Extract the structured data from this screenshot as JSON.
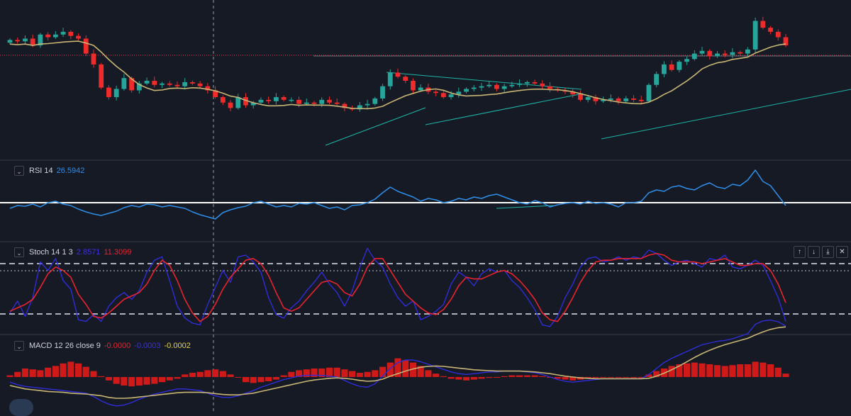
{
  "colors": {
    "background": "#161a25",
    "separator": "#363a45",
    "up_candle": "#26a69a",
    "down_candle": "#ef2b2b",
    "ma_line": "#c8b575",
    "price_line": "#f23645",
    "trendline": "#1fb5a6",
    "rsi_line": "#2e8ee8",
    "stoch_k": "#2f2cd8",
    "stoch_d": "#e8232e",
    "macd_line": "#2f2cd8",
    "signal_line": "#c8b575",
    "histogram": "#d01a1a"
  },
  "rsi": {
    "label": "RSI 14",
    "value": "26.5942",
    "value_color": "#2e8ee8"
  },
  "stoch": {
    "label": "Stoch 14 1 3",
    "k_value": "2.8571",
    "d_value": "11.3099",
    "k_color": "#3b30e0",
    "d_color": "#e8232e"
  },
  "macd": {
    "label": "MACD 12 26 close 9",
    "hist_value": "-0.0000",
    "macd_value": "-0.0003",
    "signal_value": "-0.0002",
    "hist_color": "#e8232e",
    "macd_color": "#3b30e0",
    "signal_color": "#e8d24a"
  },
  "controls": {
    "up": "↑",
    "down": "↓",
    "collapse": "⤓",
    "close": "✕",
    "chevron": "⌄"
  },
  "chart_data": [
    {
      "type": "candlestick",
      "name": "",
      "closes": [
        0.8,
        0.79,
        0.81,
        0.76,
        0.84,
        0.82,
        0.84,
        0.86,
        0.83,
        0.81,
        0.7,
        0.62,
        0.45,
        0.38,
        0.44,
        0.52,
        0.43,
        0.48,
        0.5,
        0.47,
        0.48,
        0.47,
        0.46,
        0.49,
        0.48,
        0.46,
        0.43,
        0.38,
        0.34,
        0.3,
        0.38,
        0.32,
        0.34,
        0.36,
        0.35,
        0.38,
        0.36,
        0.36,
        0.33,
        0.34,
        0.33,
        0.36,
        0.34,
        0.33,
        0.3,
        0.29,
        0.32,
        0.33,
        0.37,
        0.46,
        0.56,
        0.53,
        0.5,
        0.43,
        0.45,
        0.42,
        0.41,
        0.38,
        0.4,
        0.42,
        0.44,
        0.45,
        0.46,
        0.47,
        0.44,
        0.46,
        0.47,
        0.48,
        0.49,
        0.48,
        0.46,
        0.44,
        0.43,
        0.42,
        0.4,
        0.36,
        0.38,
        0.35,
        0.36,
        0.37,
        0.35,
        0.37,
        0.36,
        0.35,
        0.47,
        0.55,
        0.62,
        0.58,
        0.64,
        0.66,
        0.7,
        0.72,
        0.68,
        0.7,
        0.69,
        0.71,
        0.7,
        0.73,
        0.94,
        0.89,
        0.86,
        0.82,
        0.76
      ]
    },
    {
      "type": "line",
      "name": "",
      "indicator": "RSI 14",
      "last_value": 26.5942,
      "levels": [
        50
      ],
      "values": [
        0.42,
        0.46,
        0.45,
        0.48,
        0.44,
        0.5,
        0.52,
        0.48,
        0.46,
        0.41,
        0.37,
        0.34,
        0.32,
        0.35,
        0.38,
        0.43,
        0.46,
        0.44,
        0.48,
        0.47,
        0.44,
        0.46,
        0.44,
        0.42,
        0.37,
        0.33,
        0.3,
        0.27,
        0.36,
        0.4,
        0.43,
        0.45,
        0.5,
        0.52,
        0.48,
        0.44,
        0.46,
        0.44,
        0.49,
        0.48,
        0.5,
        0.46,
        0.42,
        0.44,
        0.4,
        0.46,
        0.47,
        0.5,
        0.55,
        0.64,
        0.72,
        0.66,
        0.62,
        0.58,
        0.52,
        0.56,
        0.54,
        0.5,
        0.52,
        0.56,
        0.54,
        0.58,
        0.56,
        0.6,
        0.62,
        0.58,
        0.54,
        0.5,
        0.48,
        0.53,
        0.5,
        0.44,
        0.47,
        0.49,
        0.5,
        0.48,
        0.52,
        0.49,
        0.5,
        0.48,
        0.44,
        0.5,
        0.5,
        0.52,
        0.64,
        0.68,
        0.66,
        0.72,
        0.74,
        0.7,
        0.68,
        0.74,
        0.78,
        0.72,
        0.7,
        0.76,
        0.74,
        0.82,
        0.96,
        0.8,
        0.74,
        0.6,
        0.46
      ]
    },
    {
      "type": "line",
      "name": "",
      "indicator": "Stoch 14 1 3",
      "k_last": 2.8571,
      "d_last": 11.3099,
      "levels": [
        80,
        20
      ],
      "k": [
        0.22,
        0.36,
        0.18,
        0.4,
        0.82,
        0.72,
        0.86,
        0.6,
        0.5,
        0.14,
        0.12,
        0.2,
        0.12,
        0.3,
        0.4,
        0.46,
        0.38,
        0.48,
        0.7,
        0.84,
        0.88,
        0.6,
        0.3,
        0.16,
        0.1,
        0.08,
        0.32,
        0.52,
        0.72,
        0.58,
        0.88,
        0.9,
        0.82,
        0.7,
        0.4,
        0.2,
        0.16,
        0.28,
        0.36,
        0.48,
        0.58,
        0.7,
        0.56,
        0.46,
        0.3,
        0.48,
        0.76,
        0.98,
        0.84,
        0.76,
        0.56,
        0.4,
        0.3,
        0.36,
        0.14,
        0.18,
        0.24,
        0.32,
        0.56,
        0.7,
        0.64,
        0.54,
        0.68,
        0.74,
        0.7,
        0.72,
        0.6,
        0.52,
        0.4,
        0.26,
        0.08,
        0.06,
        0.18,
        0.4,
        0.56,
        0.76,
        0.86,
        0.88,
        0.82,
        0.84,
        0.88,
        0.84,
        0.88,
        0.86,
        0.96,
        0.92,
        0.84,
        0.78,
        0.82,
        0.84,
        0.8,
        0.76,
        0.86,
        0.84,
        0.9,
        0.76,
        0.74,
        0.78,
        0.84,
        0.78,
        0.6,
        0.4,
        0.12
      ],
      "d": [
        0.24,
        0.28,
        0.32,
        0.38,
        0.52,
        0.68,
        0.76,
        0.72,
        0.64,
        0.44,
        0.32,
        0.18,
        0.16,
        0.22,
        0.3,
        0.38,
        0.42,
        0.46,
        0.56,
        0.72,
        0.84,
        0.78,
        0.6,
        0.38,
        0.22,
        0.12,
        0.18,
        0.32,
        0.5,
        0.64,
        0.74,
        0.84,
        0.86,
        0.8,
        0.66,
        0.46,
        0.28,
        0.24,
        0.28,
        0.38,
        0.48,
        0.58,
        0.6,
        0.56,
        0.46,
        0.42,
        0.56,
        0.76,
        0.86,
        0.86,
        0.72,
        0.58,
        0.44,
        0.36,
        0.28,
        0.22,
        0.2,
        0.26,
        0.38,
        0.54,
        0.64,
        0.62,
        0.62,
        0.66,
        0.7,
        0.72,
        0.68,
        0.6,
        0.5,
        0.38,
        0.22,
        0.14,
        0.12,
        0.24,
        0.4,
        0.58,
        0.72,
        0.82,
        0.84,
        0.84,
        0.86,
        0.86,
        0.86,
        0.86,
        0.9,
        0.92,
        0.9,
        0.84,
        0.82,
        0.82,
        0.82,
        0.8,
        0.82,
        0.84,
        0.86,
        0.82,
        0.78,
        0.78,
        0.8,
        0.8,
        0.72,
        0.56,
        0.34
      ]
    },
    {
      "type": "bar",
      "name": "",
      "indicator": "MACD 12 26 close 9",
      "hist_last": -0.0,
      "macd_last": -0.0003,
      "signal_last": -0.0002,
      "histogram": [
        0.4,
        1.2,
        2.0,
        1.8,
        1.6,
        2.2,
        2.6,
        3.2,
        3.6,
        3.2,
        2.4,
        1.4,
        0.2,
        -0.8,
        -1.6,
        -2.0,
        -2.2,
        -2.0,
        -1.8,
        -1.6,
        -1.2,
        -0.8,
        -0.4,
        0.6,
        1.0,
        1.2,
        1.6,
        1.8,
        1.4,
        0.6,
        0.0,
        -1.2,
        -1.4,
        -1.2,
        -1.0,
        -0.6,
        0.4,
        1.2,
        1.6,
        1.8,
        2.0,
        2.0,
        2.2,
        2.2,
        1.8,
        1.4,
        1.0,
        1.2,
        1.6,
        2.4,
        3.4,
        4.4,
        4.0,
        3.4,
        2.6,
        1.6,
        0.8,
        0.2,
        -0.4,
        -0.6,
        -0.8,
        -0.6,
        -0.4,
        -0.2,
        0.0,
        0.2,
        0.4,
        0.4,
        0.4,
        0.4,
        0.2,
        0.0,
        -0.4,
        -0.6,
        -0.8,
        -0.6,
        -0.4,
        -0.2,
        -0.1,
        -0.1,
        -0.1,
        -0.1,
        -0.2,
        -0.2,
        0.6,
        1.4,
        2.0,
        2.6,
        3.0,
        3.2,
        3.4,
        3.2,
        3.0,
        2.8,
        2.6,
        2.8,
        3.0,
        3.0,
        3.6,
        3.4,
        3.0,
        2.2,
        0.8
      ],
      "macd": [
        -1.2,
        -1.8,
        -2.2,
        -2.4,
        -2.6,
        -2.8,
        -3.0,
        -3.2,
        -3.4,
        -3.6,
        -3.8,
        -4.6,
        -5.6,
        -6.4,
        -6.8,
        -6.6,
        -6.0,
        -5.2,
        -4.6,
        -4.0,
        -3.6,
        -3.2,
        -2.8,
        -2.8,
        -3.0,
        -3.2,
        -3.8,
        -4.4,
        -4.8,
        -4.8,
        -4.4,
        -3.8,
        -3.2,
        -2.4,
        -1.8,
        -1.2,
        -0.6,
        -0.2,
        0.2,
        0.4,
        0.4,
        0.4,
        0.2,
        0.0,
        -0.8,
        -1.6,
        -2.2,
        -2.4,
        -1.6,
        0.2,
        2.0,
        3.4,
        4.0,
        4.0,
        3.6,
        3.0,
        2.4,
        1.8,
        1.2,
        0.8,
        0.6,
        0.8,
        1.0,
        1.2,
        1.2,
        1.4,
        1.4,
        1.4,
        1.2,
        1.0,
        0.6,
        0.0,
        -0.6,
        -1.0,
        -1.2,
        -1.0,
        -0.8,
        -0.6,
        -0.4,
        -0.4,
        -0.4,
        -0.4,
        -0.4,
        -0.4,
        0.6,
        2.0,
        3.4,
        4.4,
        5.2,
        6.0,
        6.8,
        7.6,
        8.0,
        8.4,
        8.6,
        9.0,
        9.6,
        10.2,
        12.4,
        13.2,
        13.4,
        13.0,
        12.0
      ],
      "signal": [
        -2.0,
        -2.4,
        -2.8,
        -3.0,
        -3.2,
        -3.4,
        -3.5,
        -3.6,
        -3.8,
        -3.9,
        -4.0,
        -4.2,
        -4.4,
        -4.8,
        -5.0,
        -5.0,
        -4.9,
        -4.7,
        -4.5,
        -4.3,
        -4.1,
        -3.9,
        -3.7,
        -3.6,
        -3.6,
        -3.6,
        -3.7,
        -3.9,
        -4.1,
        -4.2,
        -4.2,
        -4.0,
        -3.8,
        -3.4,
        -3.0,
        -2.6,
        -2.2,
        -1.8,
        -1.4,
        -1.0,
        -0.7,
        -0.5,
        -0.3,
        -0.2,
        -0.3,
        -0.5,
        -0.8,
        -1.0,
        -0.9,
        -0.5,
        0.2,
        0.8,
        1.4,
        1.9,
        2.3,
        2.5,
        2.6,
        2.5,
        2.3,
        2.1,
        1.9,
        1.7,
        1.6,
        1.5,
        1.4,
        1.4,
        1.4,
        1.4,
        1.3,
        1.2,
        1.0,
        0.8,
        0.5,
        0.2,
        0.0,
        -0.2,
        -0.3,
        -0.4,
        -0.4,
        -0.4,
        -0.4,
        -0.4,
        -0.4,
        -0.4,
        -0.3,
        0.2,
        0.9,
        1.7,
        2.6,
        3.6,
        4.6,
        5.5,
        6.3,
        7.0,
        7.6,
        8.1,
        8.6,
        9.1,
        9.9,
        10.6,
        11.2,
        11.6,
        11.8
      ]
    }
  ]
}
